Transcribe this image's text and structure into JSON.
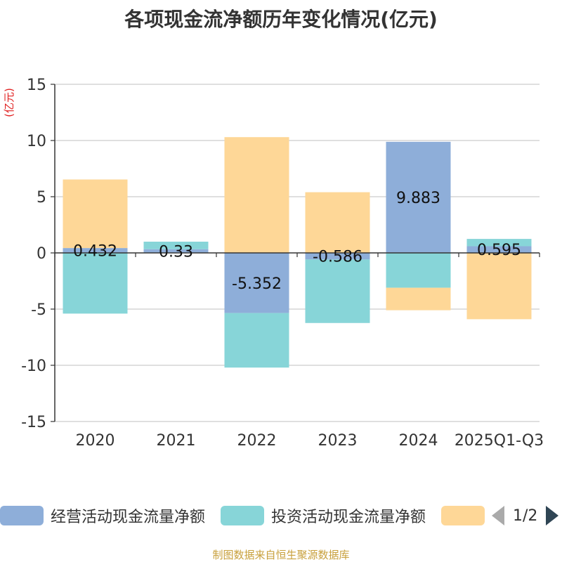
{
  "chart_data": {
    "type": "bar",
    "stacked": true,
    "title": "各项现金流净额历年变化情况(亿元)",
    "ylabel": "(亿元)",
    "xlabel": "",
    "categories": [
      "2020",
      "2021",
      "2022",
      "2023",
      "2024",
      "2025Q1-Q3"
    ],
    "ylim": [
      -15,
      15
    ],
    "yticks": [
      15,
      10,
      5,
      0,
      -5,
      -10,
      -15
    ],
    "grid": true,
    "series": [
      {
        "name": "经营活动现金流量净额",
        "color": "#8eaed9",
        "values": [
          0.432,
          0.33,
          -5.352,
          -0.586,
          9.883,
          0.595
        ],
        "labels": [
          "0.432",
          "0.33",
          "-5.352",
          "-0.586",
          "9.883",
          "0.595"
        ]
      },
      {
        "name": "投资活动现金流量净额",
        "color": "#87d5d8",
        "values": [
          -5.4,
          0.67,
          -4.85,
          -5.65,
          -3.1,
          0.65
        ]
      },
      {
        "name": "",
        "color": "#fed797",
        "values": [
          6.1,
          0.0,
          10.3,
          5.4,
          -2.0,
          -5.9
        ]
      }
    ]
  },
  "legend": {
    "page_indicator": "1/2"
  },
  "source": "制图数据来自恒生聚源数据库"
}
